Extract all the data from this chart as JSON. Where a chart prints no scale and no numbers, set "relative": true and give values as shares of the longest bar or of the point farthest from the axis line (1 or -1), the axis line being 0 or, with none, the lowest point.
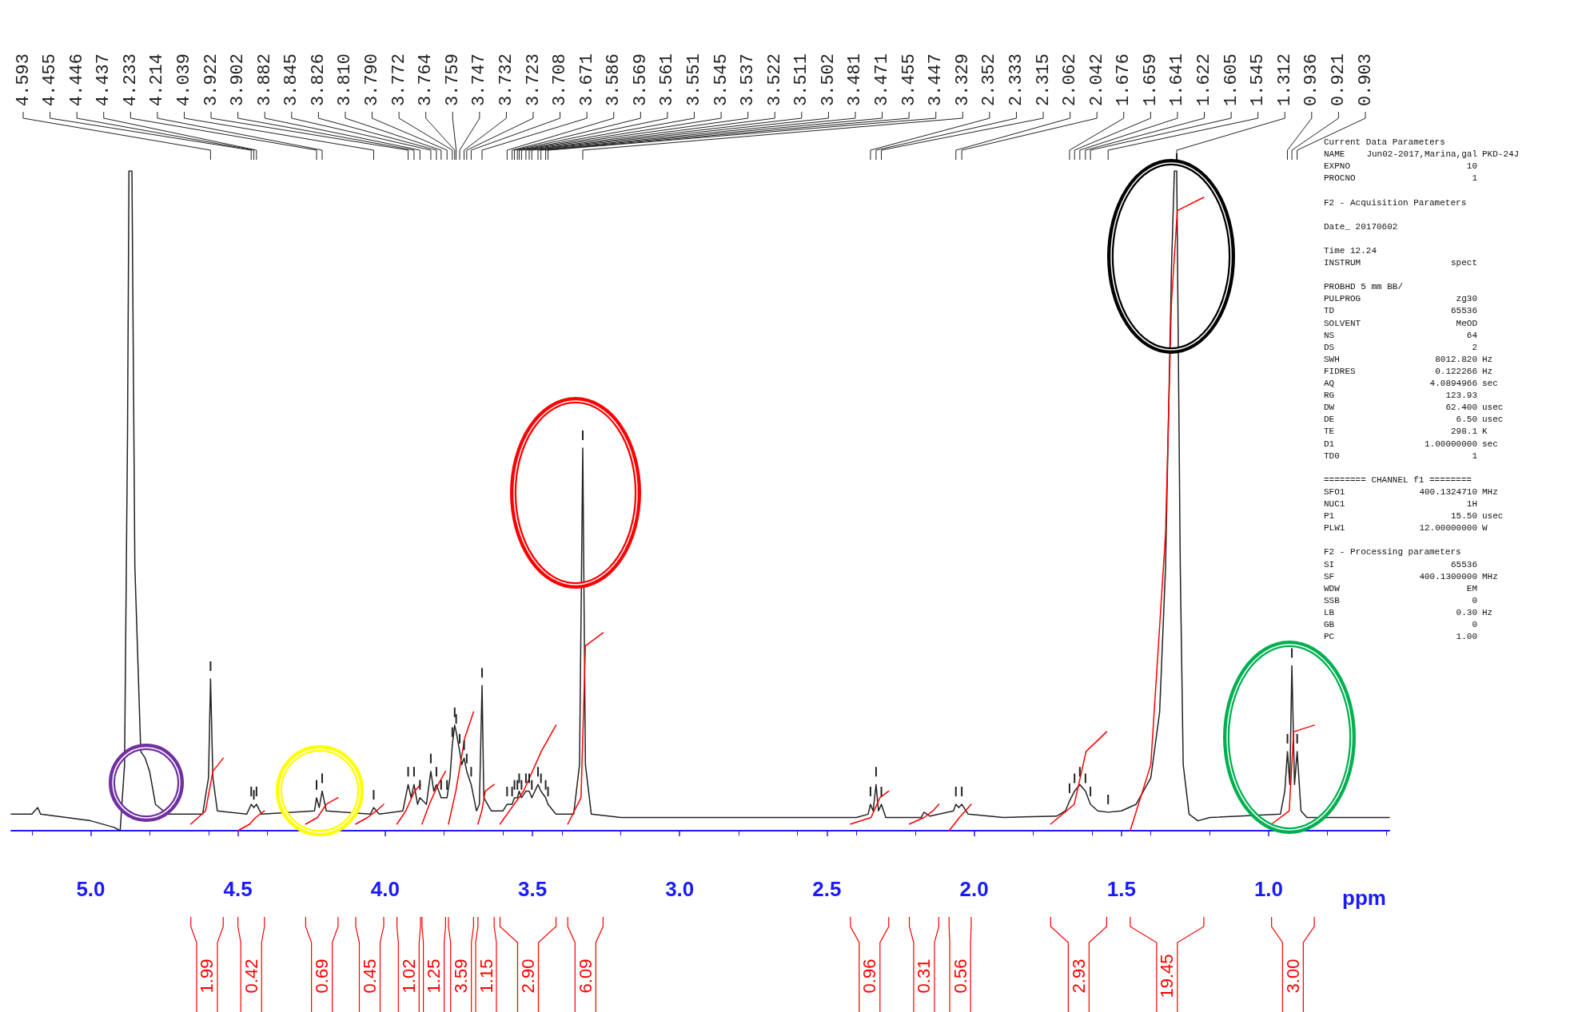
{
  "chart_data": {
    "type": "line",
    "relative": true,
    "xlabel": "ppm",
    "xlim": [
      5.27,
      0.59
    ],
    "xticks": [
      {
        "value": 5,
        "label": "5.0"
      },
      {
        "value": 4.5,
        "label": "4.5"
      },
      {
        "value": 4,
        "label": "4.0"
      },
      {
        "value": 3.5,
        "label": "3.5"
      },
      {
        "value": 3,
        "label": "3.0"
      },
      {
        "value": 2.5,
        "label": "2.5"
      },
      {
        "value": 2,
        "label": "2.0"
      },
      {
        "value": 1.5,
        "label": "1.5"
      },
      {
        "value": 1,
        "label": "1.0"
      }
    ],
    "marker": "none",
    "line_style": "solid",
    "series": [
      {
        "color": "#222222",
        "x": [
          5.27,
          5.2,
          5.18,
          5.17,
          5.0,
          4.92,
          4.9,
          4.885,
          4.875,
          4.87,
          4.86,
          4.85,
          4.83,
          4.815,
          4.8,
          4.78,
          4.74,
          4.62,
          4.6,
          4.593,
          4.585,
          4.57,
          4.47,
          4.455,
          4.446,
          4.437,
          4.42,
          4.24,
          4.233,
          4.224,
          4.214,
          4.2,
          4.05,
          4.039,
          4.02,
          3.94,
          3.922,
          3.912,
          3.902,
          3.89,
          3.882,
          3.86,
          3.845,
          3.835,
          3.826,
          3.81,
          3.79,
          3.78,
          3.772,
          3.764,
          3.759,
          3.747,
          3.74,
          3.732,
          3.723,
          3.708,
          3.69,
          3.68,
          3.671,
          3.665,
          3.64,
          3.6,
          3.586,
          3.569,
          3.561,
          3.551,
          3.545,
          3.537,
          3.522,
          3.511,
          3.502,
          3.481,
          3.471,
          3.455,
          3.447,
          3.42,
          3.36,
          3.34,
          3.329,
          3.32,
          3.3,
          3.2,
          2.4,
          2.36,
          2.352,
          2.343,
          2.333,
          2.325,
          2.315,
          2.3,
          2.18,
          2.17,
          2.15,
          2.07,
          2.062,
          2.052,
          2.042,
          2.02,
          1.9,
          1.72,
          1.69,
          1.676,
          1.659,
          1.641,
          1.622,
          1.605,
          1.58,
          1.545,
          1.5,
          1.45,
          1.4,
          1.37,
          1.35,
          1.33,
          1.32,
          1.312,
          1.3,
          1.29,
          1.27,
          1.24,
          1.2,
          0.96,
          0.945,
          0.936,
          0.928,
          0.921,
          0.912,
          0.903,
          0.89,
          0.87,
          0.59
        ],
        "values": [
          0.025,
          0.025,
          0.035,
          0.025,
          0.015,
          0.005,
          0,
          0.1,
          0.6,
          1,
          1,
          0.4,
          0.12,
          0.11,
          0.09,
          0.04,
          0.025,
          0.025,
          0.08,
          0.23,
          0.08,
          0.03,
          0.025,
          0.04,
          0.035,
          0.04,
          0.025,
          0.03,
          0.05,
          0.035,
          0.06,
          0.03,
          0.025,
          0.035,
          0.025,
          0.03,
          0.07,
          0.05,
          0.07,
          0.04,
          0.05,
          0.04,
          0.09,
          0.06,
          0.07,
          0.05,
          0.05,
          0.08,
          0.13,
          0.16,
          0.15,
          0.12,
          0.1,
          0.11,
          0.09,
          0.07,
          0.03,
          0.04,
          0.22,
          0.05,
          0.03,
          0.03,
          0.04,
          0.04,
          0.05,
          0.05,
          0.06,
          0.05,
          0.06,
          0.06,
          0.05,
          0.07,
          0.06,
          0.05,
          0.04,
          0.025,
          0.025,
          0.1,
          0.58,
          0.1,
          0.025,
          0.02,
          0.02,
          0.025,
          0.04,
          0.03,
          0.07,
          0.03,
          0.04,
          0.02,
          0.02,
          0.028,
          0.022,
          0.03,
          0.04,
          0.035,
          0.04,
          0.025,
          0.02,
          0.022,
          0.03,
          0.045,
          0.06,
          0.07,
          0.06,
          0.04,
          0.03,
          0.028,
          0.03,
          0.04,
          0.08,
          0.18,
          0.4,
          0.85,
          1,
          1,
          0.4,
          0.1,
          0.025,
          0.015,
          0.02,
          0.025,
          0.06,
          0.12,
          0.07,
          0.25,
          0.07,
          0.12,
          0.03,
          0.02,
          0.02
        ]
      },
      {
        "color": "#ff0000",
        "x": [
          4.66,
          4.61,
          4.585,
          4.55
        ],
        "values": [
          0.01,
          0.03,
          0.09,
          0.11
        ]
      },
      {
        "color": "#ff0000",
        "x": [
          4.5,
          4.46,
          4.44,
          4.41
        ],
        "values": [
          0,
          0.01,
          0.02,
          0.03
        ]
      },
      {
        "color": "#ff0000",
        "x": [
          4.27,
          4.23,
          4.2,
          4.16
        ],
        "values": [
          0.01,
          0.02,
          0.04,
          0.05
        ]
      },
      {
        "color": "#ff0000",
        "x": [
          4.1,
          4.06,
          4.03,
          4.005
        ],
        "values": [
          0.01,
          0.02,
          0.03,
          0.04
        ]
      },
      {
        "color": "#ff0000",
        "x": [
          3.96,
          3.93,
          3.9,
          3.88
        ],
        "values": [
          0.01,
          0.03,
          0.06,
          0.07
        ]
      },
      {
        "color": "#ff0000",
        "x": [
          3.875,
          3.85,
          3.82,
          3.795
        ],
        "values": [
          0.01,
          0.04,
          0.07,
          0.09
        ]
      },
      {
        "color": "#ff0000",
        "x": [
          3.785,
          3.76,
          3.73,
          3.7
        ],
        "values": [
          0.01,
          0.06,
          0.14,
          0.18
        ]
      },
      {
        "color": "#ff0000",
        "x": [
          3.685,
          3.672,
          3.66,
          3.63
        ],
        "values": [
          0.01,
          0.03,
          0.06,
          0.07
        ]
      },
      {
        "color": "#ff0000",
        "x": [
          3.61,
          3.53,
          3.47,
          3.42
        ],
        "values": [
          0.01,
          0.06,
          0.12,
          0.16
        ]
      },
      {
        "color": "#ff0000",
        "x": [
          3.38,
          3.335,
          3.32,
          3.26
        ],
        "values": [
          0.01,
          0.05,
          0.28,
          0.3
        ]
      },
      {
        "color": "#ff0000",
        "x": [
          2.42,
          2.35,
          2.32,
          2.29
        ],
        "values": [
          0.01,
          0.02,
          0.05,
          0.06
        ]
      },
      {
        "color": "#ff0000",
        "x": [
          2.22,
          2.17,
          2.14,
          2.12
        ],
        "values": [
          0.01,
          0.02,
          0.03,
          0.04
        ]
      },
      {
        "color": "#ff0000",
        "x": [
          2.085,
          2.05,
          2.03,
          2.01
        ],
        "values": [
          0,
          0.02,
          0.03,
          0.04
        ]
      },
      {
        "color": "#ff0000",
        "x": [
          1.74,
          1.66,
          1.62,
          1.55
        ],
        "values": [
          0.01,
          0.04,
          0.12,
          0.15
        ]
      },
      {
        "color": "#ff0000",
        "x": [
          1.47,
          1.4,
          1.35,
          1.33,
          1.31,
          1.22
        ],
        "values": [
          0,
          0.1,
          0.45,
          0.8,
          0.94,
          0.96
        ]
      },
      {
        "color": "#ff0000",
        "x": [
          0.99,
          0.93,
          0.915,
          0.845
        ],
        "values": [
          0.01,
          0.03,
          0.15,
          0.16
        ]
      }
    ],
    "annotations": [
      "4.593",
      "4.455",
      "4.446",
      "4.437",
      "4.233",
      "4.214",
      "4.039",
      "3.922",
      "3.902",
      "3.882",
      "3.845",
      "3.826",
      "3.810",
      "3.790",
      "3.772",
      "3.764",
      "3.759",
      "3.747",
      "3.732",
      "3.723",
      "3.708",
      "3.671",
      "3.586",
      "3.569",
      "3.561",
      "3.551",
      "3.545",
      "3.537",
      "3.522",
      "3.511",
      "3.502",
      "3.481",
      "3.471",
      "3.455",
      "3.447",
      "3.329",
      "2.352",
      "2.333",
      "2.315",
      "2.062",
      "2.042",
      "1.676",
      "1.659",
      "1.641",
      "1.622",
      "1.605",
      "1.545",
      "1.312",
      "0.936",
      "0.921",
      "0.903",
      "1.99",
      "0.42",
      "0.69",
      "0.45",
      "1.02",
      "1.25",
      "3.59",
      "1.15",
      "2.90",
      "6.09",
      "0.96",
      "0.31",
      "0.56",
      "2.93",
      "19.45",
      "3.00",
      "Current Data Parameters",
      "NAME Jun02-2017,Marina,gal PKD-24J",
      "EXPNO 10",
      "PROCNO 1",
      "F2 - Acquisition Parameters",
      "Date_ 20170602",
      "Time 12.24",
      "INSTRUM spect",
      "PROBHD 5 mm BB/",
      "PULPROG zg30",
      "TD 65536",
      "SOLVENT MeOD",
      "NS 64",
      "DS 2",
      "SWH 8012.820 Hz",
      "FIDRES 0.122266 Hz",
      "AQ 4.0894966 sec",
      "RG 123.93",
      "DW 62.400 usec",
      "DE 6.50 usec",
      "TE 298.1 K",
      "D1 1.00000000 sec",
      "TD0 1",
      "======== CHANNEL f1 ========",
      "SFO1 400.1324710 MHz",
      "NUC1 1H",
      "P1 15.50 usec",
      "PLW1 12.00000000 W",
      "F2 - Processing parameters",
      "SI 65536",
      "SF 400.1300000 MHz",
      "WDW EM",
      "SSB 0",
      "LB 0.30 Hz",
      "GB 0",
      "PC 1.00"
    ]
  }
}
